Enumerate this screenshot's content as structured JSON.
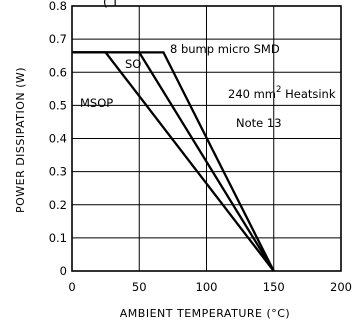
{
  "chart_data": {
    "type": "line",
    "title": "",
    "title_fragment": "( T",
    "xlabel": "AMBIENT TEMPERATURE (°C)",
    "ylabel": "POWER DISSIPATION (W)",
    "xlim": [
      0,
      200
    ],
    "ylim": [
      0,
      0.8
    ],
    "x_ticks": [
      "0",
      "50",
      "100",
      "150",
      "200"
    ],
    "y_ticks": [
      "0",
      "0.1",
      "0.2",
      "0.3",
      "0.4",
      "0.5",
      "0.6",
      "0.7",
      "0.8"
    ],
    "grid": true,
    "series": [
      {
        "name": "MSOP",
        "x": [
          0,
          25,
          150
        ],
        "y": [
          0.66,
          0.66,
          0
        ]
      },
      {
        "name": "SO",
        "x": [
          0,
          50,
          150
        ],
        "y": [
          0.66,
          0.66,
          0
        ]
      },
      {
        "name": "8 bump micro SMD",
        "x": [
          0,
          68,
          150
        ],
        "y": [
          0.66,
          0.66,
          0
        ]
      }
    ],
    "annotations": {
      "heatsink_prefix": "240 mm",
      "heatsink_exponent": "2",
      "heatsink_suffix": " Heatsink",
      "note": "Note 13"
    }
  }
}
